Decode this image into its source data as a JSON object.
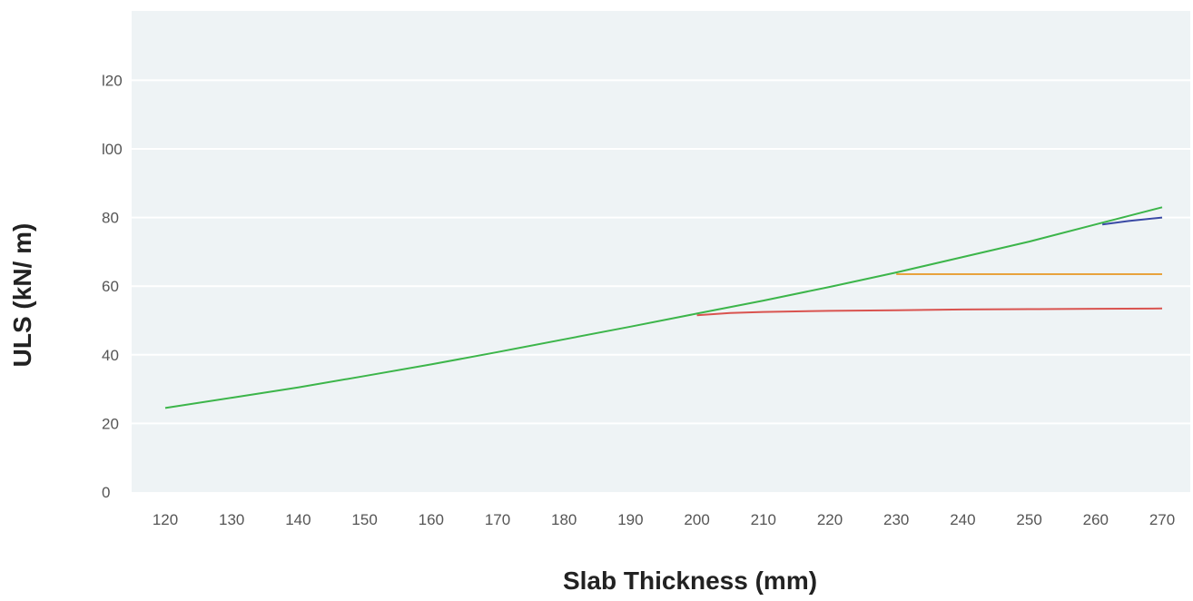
{
  "chart_data": {
    "type": "line",
    "title": "",
    "xlabel": "Slab Thickness (mm)",
    "ylabel": "ULS (kN/ m)",
    "xlim": [
      115,
      275
    ],
    "ylim": [
      0,
      140
    ],
    "x_ticks": [
      "120",
      "130",
      "140",
      "150",
      "160",
      "170",
      "180",
      "190",
      "200",
      "210",
      "220",
      "230",
      "240",
      "250",
      "260",
      "270"
    ],
    "y_ticks": [
      "0",
      "20",
      "40",
      "60",
      "80",
      "100",
      "120"
    ],
    "y_tick_labels": [
      "0",
      "20",
      "40",
      "60",
      "80",
      "l00",
      "l20"
    ],
    "grid": "horizontal",
    "legend": "none",
    "background": "#eef3f5",
    "series": [
      {
        "color": "#d9534f",
        "x": [
          200,
          205,
          210,
          220,
          230,
          240,
          250,
          260,
          270
        ],
        "y": [
          51.5,
          52.2,
          52.5,
          52.8,
          53.0,
          53.2,
          53.3,
          53.4,
          53.5
        ]
      },
      {
        "color": "#e8a33d",
        "x": [
          230,
          240,
          250,
          260,
          270
        ],
        "y": [
          63.5,
          63.5,
          63.5,
          63.5,
          63.5
        ]
      },
      {
        "color": "#3a4aa5",
        "x": [
          261,
          265,
          270
        ],
        "y": [
          78,
          79,
          80
        ]
      },
      {
        "color": "#3cb54a",
        "x": [
          120,
          130,
          140,
          150,
          160,
          170,
          180,
          190,
          200,
          210,
          220,
          230,
          240,
          250,
          260,
          270
        ],
        "y": [
          24.5,
          27.5,
          30.5,
          33.8,
          37.2,
          40.8,
          44.5,
          48.2,
          52.0,
          55.8,
          59.8,
          64.0,
          68.5,
          73.0,
          78.0,
          83.0
        ]
      }
    ]
  }
}
